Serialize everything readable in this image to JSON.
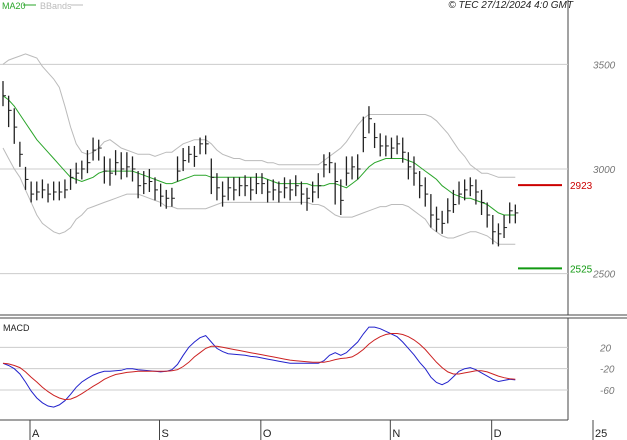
{
  "header": {
    "legend_ma": "MA20",
    "legend_bbands": "BBands",
    "copyright": "© TEC 27/12/2024 4:0 GMT"
  },
  "colors": {
    "bars": "#222222",
    "ma20": "#2aa52a",
    "bbands": "#bbbbbb",
    "grid": "#cccccc",
    "resistance": "#cc0000",
    "support": "#119911",
    "macd": "#2222cc",
    "signal": "#cc2222",
    "axis_text": "#777777"
  },
  "chart_data": [
    {
      "type": "ohlc",
      "ylim": [
        2350,
        3750
      ],
      "y_ticks": [
        2500,
        3000,
        3500
      ],
      "y_tick_labels": [
        "2500",
        "3000",
        "3500"
      ],
      "grid": "horizontal",
      "x_month_labels": [
        "A",
        "S",
        "O",
        "N",
        "D",
        "25"
      ],
      "x_month_positions": [
        0,
        23,
        41,
        64,
        82,
        100
      ],
      "x": [
        0,
        1,
        2,
        3,
        4,
        5,
        6,
        7,
        8,
        9,
        10,
        11,
        12,
        13,
        14,
        15,
        16,
        17,
        18,
        19,
        20,
        21,
        22,
        23,
        24,
        25,
        26,
        27,
        28,
        29,
        30,
        31,
        32,
        33,
        34,
        35,
        36,
        37,
        38,
        39,
        40,
        41,
        42,
        43,
        44,
        45,
        46,
        47,
        48,
        49,
        50,
        51,
        52,
        53,
        54,
        55,
        56,
        57,
        58,
        59,
        60,
        61,
        62,
        63,
        64,
        65,
        66,
        67,
        68,
        69,
        70,
        71,
        72,
        73,
        74,
        75,
        76,
        77,
        78,
        79,
        80,
        81,
        82,
        83,
        84,
        85,
        86,
        87,
        88,
        89,
        90,
        91
      ],
      "close": [
        3350,
        3280,
        3200,
        3070,
        2950,
        2880,
        2890,
        2900,
        2880,
        2890,
        2890,
        2900,
        2960,
        2980,
        3000,
        3030,
        3090,
        3100,
        2990,
        2980,
        3030,
        3000,
        3010,
        3000,
        2920,
        2930,
        2940,
        2900,
        2870,
        2860,
        2860,
        2990,
        3040,
        3070,
        3060,
        3120,
        3120,
        2960,
        2910,
        2870,
        2910,
        2900,
        2920,
        2920,
        2900,
        2930,
        2930,
        2890,
        2900,
        2890,
        2910,
        2900,
        2920,
        2880,
        2860,
        2890,
        2920,
        3020,
        3030,
        2940,
        2850,
        2980,
        3010,
        3000,
        3150,
        3240,
        3150,
        3110,
        3110,
        3100,
        3120,
        3080,
        3010,
        2980,
        2920,
        2880,
        2780,
        2760,
        2740,
        2800,
        2830,
        2880,
        2900,
        2920,
        2890,
        2840,
        2780,
        2700,
        2690,
        2720,
        2800,
        2790
      ],
      "high": [
        3420,
        3350,
        3290,
        3130,
        3010,
        2940,
        2940,
        2950,
        2930,
        2940,
        2940,
        2950,
        3000,
        3030,
        3040,
        3090,
        3150,
        3140,
        3060,
        3050,
        3090,
        3080,
        3080,
        3060,
        2990,
        2990,
        3000,
        2960,
        2930,
        2900,
        2910,
        3060,
        3100,
        3110,
        3110,
        3150,
        3160,
        3050,
        2980,
        2940,
        2960,
        2960,
        2960,
        2970,
        2960,
        2980,
        2980,
        2950,
        2950,
        2940,
        2960,
        2950,
        2970,
        2940,
        2910,
        2940,
        2980,
        3070,
        3080,
        3030,
        2950,
        3060,
        3060,
        3070,
        3250,
        3300,
        3220,
        3170,
        3160,
        3150,
        3160,
        3150,
        3080,
        3060,
        2990,
        2960,
        2880,
        2820,
        2800,
        2860,
        2900,
        2940,
        2950,
        2960,
        2950,
        2900,
        2840,
        2780,
        2740,
        2780,
        2840,
        2830
      ],
      "low": [
        3300,
        3200,
        3120,
        3010,
        2900,
        2840,
        2850,
        2860,
        2840,
        2850,
        2850,
        2860,
        2900,
        2930,
        2950,
        2980,
        3040,
        3040,
        2930,
        2920,
        2970,
        2950,
        2960,
        2940,
        2860,
        2880,
        2890,
        2850,
        2820,
        2810,
        2820,
        2940,
        2990,
        3030,
        3010,
        3070,
        3070,
        2880,
        2850,
        2820,
        2850,
        2850,
        2870,
        2870,
        2850,
        2880,
        2880,
        2840,
        2850,
        2840,
        2860,
        2850,
        2870,
        2830,
        2800,
        2840,
        2860,
        2960,
        2980,
        2830,
        2780,
        2920,
        2950,
        2950,
        3080,
        3170,
        3100,
        3060,
        3060,
        3050,
        3070,
        3030,
        2950,
        2920,
        2860,
        2820,
        2720,
        2700,
        2690,
        2740,
        2790,
        2830,
        2850,
        2870,
        2830,
        2780,
        2720,
        2640,
        2630,
        2670,
        2740,
        2740
      ],
      "ma20": [
        3350,
        3330,
        3300,
        3260,
        3220,
        3180,
        3140,
        3110,
        3080,
        3050,
        3020,
        2990,
        2960,
        2950,
        2940,
        2950,
        2960,
        2980,
        2990,
        2990,
        2990,
        2990,
        2990,
        2990,
        2980,
        2970,
        2960,
        2950,
        2940,
        2930,
        2930,
        2940,
        2950,
        2960,
        2970,
        2970,
        2970,
        2960,
        2960,
        2960,
        2960,
        2960,
        2960,
        2960,
        2960,
        2960,
        2960,
        2950,
        2940,
        2930,
        2930,
        2930,
        2930,
        2930,
        2930,
        2920,
        2920,
        2920,
        2930,
        2930,
        2920,
        2910,
        2930,
        2950,
        2980,
        3010,
        3030,
        3040,
        3050,
        3050,
        3050,
        3050,
        3040,
        3030,
        3010,
        2990,
        2970,
        2950,
        2920,
        2900,
        2880,
        2870,
        2860,
        2860,
        2850,
        2840,
        2830,
        2810,
        2790,
        2780,
        2780,
        2780
      ],
      "bb_upper": [
        3500,
        3520,
        3530,
        3540,
        3550,
        3540,
        3530,
        3490,
        3460,
        3430,
        3390,
        3300,
        3200,
        3120,
        3080,
        3070,
        3080,
        3100,
        3130,
        3140,
        3120,
        3100,
        3090,
        3080,
        3070,
        3070,
        3070,
        3060,
        3070,
        3080,
        3080,
        3100,
        3120,
        3130,
        3140,
        3140,
        3140,
        3120,
        3090,
        3070,
        3060,
        3050,
        3050,
        3040,
        3040,
        3040,
        3040,
        3030,
        3030,
        3020,
        3020,
        3020,
        3020,
        3020,
        3020,
        3020,
        3020,
        3040,
        3060,
        3080,
        3100,
        3130,
        3170,
        3210,
        3240,
        3260,
        3260,
        3260,
        3260,
        3260,
        3260,
        3260,
        3260,
        3260,
        3260,
        3260,
        3250,
        3230,
        3200,
        3170,
        3130,
        3090,
        3060,
        3020,
        3000,
        2980,
        2980,
        2970,
        2960,
        2960,
        2960,
        2960
      ],
      "bb_lower": [
        3100,
        3050,
        3000,
        2960,
        2900,
        2840,
        2780,
        2740,
        2720,
        2700,
        2690,
        2700,
        2720,
        2760,
        2780,
        2810,
        2820,
        2830,
        2840,
        2850,
        2860,
        2870,
        2880,
        2880,
        2880,
        2870,
        2860,
        2850,
        2840,
        2820,
        2820,
        2810,
        2810,
        2810,
        2810,
        2810,
        2810,
        2820,
        2830,
        2840,
        2840,
        2840,
        2840,
        2840,
        2840,
        2840,
        2840,
        2840,
        2840,
        2840,
        2840,
        2840,
        2840,
        2840,
        2840,
        2830,
        2830,
        2820,
        2800,
        2780,
        2770,
        2770,
        2770,
        2780,
        2790,
        2800,
        2810,
        2820,
        2820,
        2830,
        2830,
        2830,
        2820,
        2800,
        2780,
        2760,
        2720,
        2700,
        2680,
        2670,
        2670,
        2680,
        2690,
        2700,
        2700,
        2690,
        2680,
        2660,
        2640,
        2640,
        2640,
        2640
      ],
      "levels": [
        {
          "name": "resistance",
          "value": 2923,
          "label": "2923"
        },
        {
          "name": "support",
          "value": 2525,
          "label": "2525"
        }
      ]
    },
    {
      "type": "line",
      "title": "MACD",
      "ylim": [
        -105,
        60
      ],
      "y_ticks": [
        20,
        -20,
        -60
      ],
      "y_tick_labels": [
        "20",
        "-20",
        "-60"
      ],
      "grid": "horizontal",
      "series": [
        {
          "name": "macd",
          "values": [
            -10,
            -14,
            -20,
            -30,
            -45,
            -62,
            -75,
            -84,
            -90,
            -92,
            -88,
            -80,
            -68,
            -55,
            -45,
            -38,
            -32,
            -28,
            -25,
            -25,
            -24,
            -23,
            -20,
            -20,
            -22,
            -23,
            -24,
            -25,
            -26,
            -25,
            -22,
            -12,
            5,
            20,
            30,
            38,
            42,
            30,
            18,
            12,
            8,
            7,
            6,
            5,
            3,
            2,
            0,
            -2,
            -4,
            -6,
            -8,
            -10,
            -10,
            -10,
            -10,
            -10,
            -10,
            -5,
            5,
            10,
            5,
            10,
            20,
            30,
            45,
            58,
            58,
            55,
            50,
            45,
            40,
            30,
            18,
            6,
            -8,
            -20,
            -36,
            -46,
            -50,
            -45,
            -35,
            -25,
            -20,
            -18,
            -22,
            -28,
            -34,
            -40,
            -44,
            -42,
            -40,
            -41
          ]
        },
        {
          "name": "signal",
          "values": [
            -10,
            -11,
            -14,
            -18,
            -26,
            -36,
            -45,
            -55,
            -63,
            -70,
            -75,
            -78,
            -77,
            -73,
            -67,
            -60,
            -53,
            -47,
            -40,
            -35,
            -31,
            -29,
            -27,
            -26,
            -25,
            -25,
            -25,
            -25,
            -25,
            -25,
            -24,
            -22,
            -16,
            -8,
            2,
            10,
            18,
            22,
            22,
            20,
            18,
            16,
            14,
            12,
            10,
            8,
            6,
            4,
            2,
            0,
            -2,
            -4,
            -5,
            -6,
            -7,
            -8,
            -8,
            -8,
            -6,
            -3,
            -1,
            0,
            2,
            8,
            16,
            26,
            34,
            40,
            44,
            46,
            46,
            44,
            40,
            34,
            26,
            16,
            4,
            -8,
            -18,
            -26,
            -30,
            -30,
            -28,
            -26,
            -24,
            -24,
            -26,
            -30,
            -34,
            -37,
            -39,
            -40
          ]
        }
      ]
    }
  ]
}
